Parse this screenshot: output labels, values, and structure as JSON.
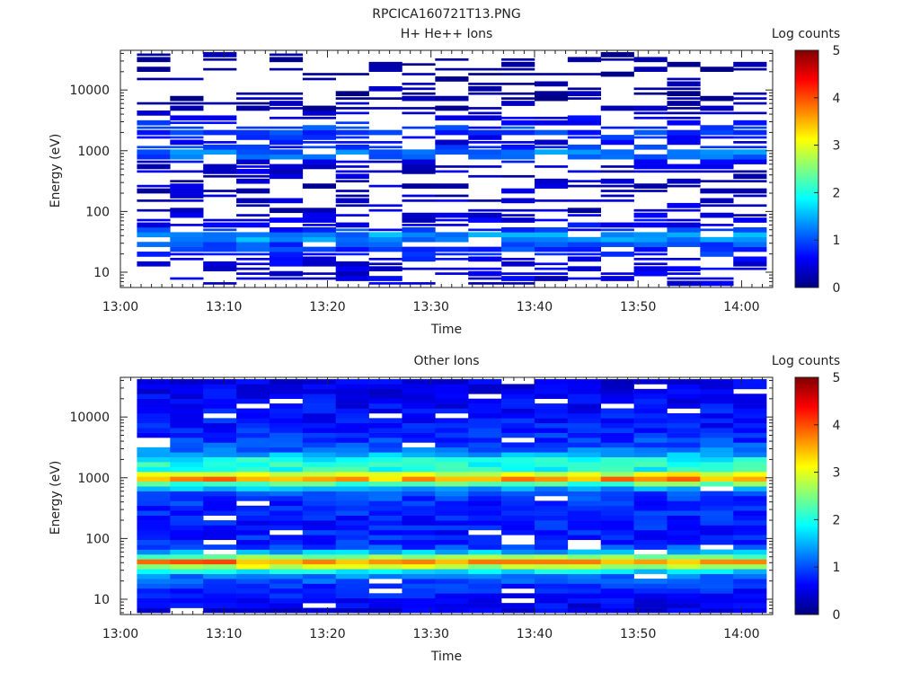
{
  "figure": {
    "title": "RPCICA160721T13.PNG"
  },
  "colorbar": {
    "min": 0,
    "max": 5,
    "ticks": [
      "0",
      "1",
      "2",
      "3",
      "4",
      "5"
    ],
    "stops": [
      "#00007f",
      "#0000ff",
      "#007fff",
      "#00ffff",
      "#7fff7f",
      "#ffff00",
      "#ff7f00",
      "#ff0000",
      "#7f0000"
    ]
  },
  "chart_data": [
    {
      "type": "heatmap",
      "title": "H+ He++ Ions",
      "xlabel": "Time",
      "ylabel": "Energy (eV)",
      "colorbar_label": "Log counts",
      "x_ticks": [
        "13:00",
        "13:10",
        "13:20",
        "13:30",
        "13:40",
        "13:50",
        "14:00"
      ],
      "y_ticks": [
        "10",
        "100",
        "1000",
        "10000"
      ],
      "y_scale": "log",
      "ylim": [
        5.6,
        45000
      ],
      "xlim_minutes": [
        0,
        63
      ],
      "time_bins": 19,
      "energy_bins": 48,
      "base_profile": [
        [
          6,
          0.4
        ],
        [
          9,
          0.5
        ],
        [
          12,
          0.5
        ],
        [
          15,
          0.55
        ],
        [
          18,
          0.7
        ],
        [
          22,
          0.9
        ],
        [
          27,
          0.9
        ],
        [
          33,
          1.2
        ],
        [
          38,
          1.6
        ],
        [
          42,
          1.3
        ],
        [
          48,
          0.9
        ],
        [
          60,
          0.6
        ],
        [
          80,
          0.45
        ],
        [
          110,
          0.35
        ],
        [
          150,
          0.35
        ],
        [
          220,
          0.3
        ],
        [
          350,
          0.3
        ],
        [
          500,
          0.35
        ],
        [
          650,
          0.5
        ],
        [
          800,
          1.1
        ],
        [
          950,
          1.25
        ],
        [
          1100,
          0.95
        ],
        [
          1400,
          0.55
        ],
        [
          1800,
          0.85
        ],
        [
          2200,
          1.0
        ],
        [
          2700,
          0.75
        ],
        [
          3500,
          0.5
        ],
        [
          5000,
          0.25
        ],
        [
          8000,
          0.2
        ],
        [
          15000,
          0.15
        ],
        [
          40000,
          0.1
        ]
      ],
      "empty_fraction": 0.45
    },
    {
      "type": "heatmap",
      "title": "Other Ions",
      "xlabel": "Time",
      "ylabel": "Energy (eV)",
      "colorbar_label": "Log counts",
      "x_ticks": [
        "13:00",
        "13:10",
        "13:20",
        "13:30",
        "13:40",
        "13:50",
        "14:00"
      ],
      "y_ticks": [
        "10",
        "100",
        "1000",
        "10000"
      ],
      "y_scale": "log",
      "ylim": [
        5.6,
        45000
      ],
      "xlim_minutes": [
        0,
        63
      ],
      "time_bins": 19,
      "energy_bins": 48,
      "base_profile": [
        [
          6,
          0.5
        ],
        [
          9,
          0.6
        ],
        [
          12,
          0.7
        ],
        [
          15,
          0.8
        ],
        [
          18,
          0.9
        ],
        [
          22,
          1.1
        ],
        [
          27,
          1.4
        ],
        [
          30,
          2.0
        ],
        [
          34,
          2.7
        ],
        [
          38,
          3.3
        ],
        [
          42,
          3.7
        ],
        [
          46,
          3.2
        ],
        [
          52,
          2.2
        ],
        [
          60,
          1.5
        ],
        [
          70,
          1.0
        ],
        [
          90,
          0.8
        ],
        [
          130,
          0.75
        ],
        [
          200,
          0.75
        ],
        [
          350,
          0.8
        ],
        [
          550,
          1.0
        ],
        [
          700,
          1.6
        ],
        [
          850,
          2.7
        ],
        [
          950,
          3.6
        ],
        [
          1050,
          3.7
        ],
        [
          1200,
          2.6
        ],
        [
          1450,
          1.8
        ],
        [
          1800,
          2.1
        ],
        [
          2200,
          1.7
        ],
        [
          3000,
          1.1
        ],
        [
          5000,
          0.8
        ],
        [
          10000,
          0.7
        ],
        [
          20000,
          0.6
        ],
        [
          40000,
          0.5
        ]
      ],
      "empty_fraction": 0.08
    }
  ]
}
